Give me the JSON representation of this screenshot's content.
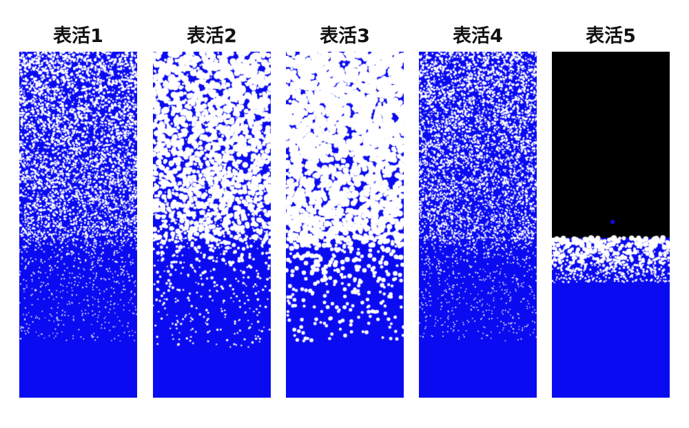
{
  "panels": [
    {
      "label": "表活1",
      "foam_color": "#0b0bf2",
      "bubble_color": "#ffffff"
    },
    {
      "label": "表活2",
      "foam_color": "#0b0bf2",
      "bubble_color": "#ffffff"
    },
    {
      "label": "表活3",
      "foam_color": "#0b0bf2",
      "bubble_color": "#ffffff"
    },
    {
      "label": "表活4",
      "foam_color": "#0b0bf2",
      "bubble_color": "#ffffff"
    },
    {
      "label": "表活5",
      "foam_color": "#0b0bf2",
      "bubble_color": "#ffffff",
      "top_color": "#000000"
    }
  ]
}
